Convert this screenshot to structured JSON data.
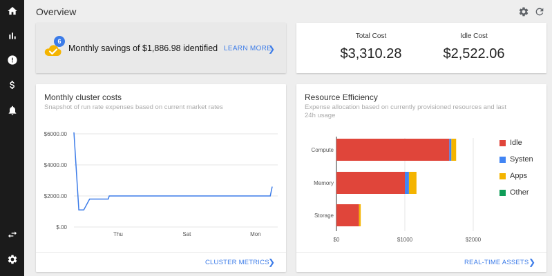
{
  "header": {
    "title": "Overview"
  },
  "icons": {
    "nav": [
      "home-icon",
      "bar-chart-icon",
      "alert-icon",
      "dollar-icon",
      "bell-icon",
      "swap-icon",
      "settings-icon"
    ],
    "header": [
      "gear-icon",
      "refresh-icon"
    ]
  },
  "savings": {
    "badge": "6",
    "text": "Monthly savings of $1,886.98 identified",
    "link": "LEARN MORE",
    "chevron": "❯"
  },
  "costs": {
    "total_label": "Total Cost",
    "total_value": "$3,310.28",
    "idle_label": "Idle Cost",
    "idle_value": "$2,522.06"
  },
  "cluster": {
    "title": "Monthly cluster costs",
    "subtitle": "Snapshot of run rate expenses based on current market rates",
    "footer_link": "CLUSTER METRICS",
    "chevron": "❯"
  },
  "efficiency": {
    "title": "Resource Efficiency",
    "subtitle_1": "Expense allocation based on currently provisioned resources and last",
    "subtitle_2": "24h usage",
    "footer_link": "REAL-TIME ASSETS",
    "chevron": "❯",
    "legend": [
      {
        "label": "Idle",
        "color": "#e0453a"
      },
      {
        "label": "Systen",
        "color": "#4285f4"
      },
      {
        "label": "Apps",
        "color": "#f4b400"
      },
      {
        "label": "Other",
        "color": "#0f9d58"
      }
    ]
  },
  "colors": {
    "accent": "#3b7be8",
    "line": "#3b7be8",
    "sidebar": "#1b1b1b"
  },
  "chart_data": [
    {
      "type": "line",
      "x": [
        0,
        0.5,
        1.0,
        1.6,
        3.5,
        3.6,
        20.0,
        20.2
      ],
      "values": [
        6100,
        1100,
        1100,
        1800,
        1800,
        2000,
        2000,
        2600
      ],
      "y_ticks": [
        "$6000.00",
        "$4000.00",
        "$2000.00",
        "$.00"
      ],
      "x_tick_labels": [
        "Thu",
        "Sat",
        "Mon"
      ],
      "ylim": [
        0,
        6000
      ],
      "grid": true
    },
    {
      "type": "bar",
      "orientation": "horizontal",
      "stacked": true,
      "categories": [
        "Compute",
        "Memory",
        "Storage"
      ],
      "series": [
        {
          "name": "Idle",
          "values": [
            1650,
            1000,
            330
          ]
        },
        {
          "name": "Systen",
          "values": [
            30,
            60,
            0
          ]
        },
        {
          "name": "Apps",
          "values": [
            70,
            110,
            25
          ]
        },
        {
          "name": "Other",
          "values": [
            0,
            0,
            0
          ]
        }
      ],
      "x_tick_labels": [
        "$0",
        "$1000",
        "$2000"
      ],
      "xlim": [
        0,
        2000
      ],
      "legend_position": "right"
    }
  ]
}
